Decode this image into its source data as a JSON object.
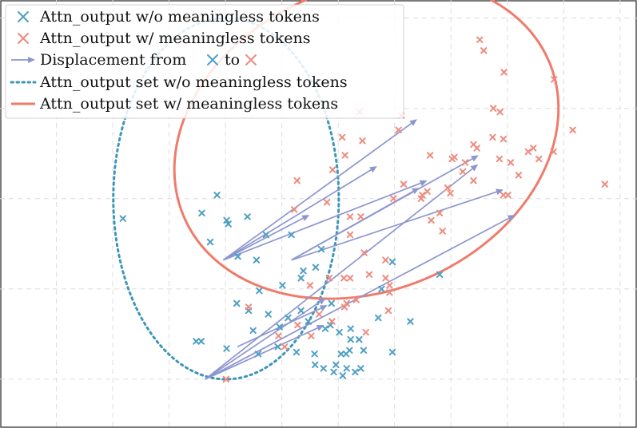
{
  "chart_data": {
    "type": "scatter",
    "title": "",
    "xlabel": "",
    "ylabel": "",
    "grid": true,
    "legend_position": "top-left",
    "colors": {
      "without": "#4e9fc4",
      "with": "#ee8b7e",
      "arrow": "#8c96cf",
      "ellipse_without": "#3d95b8",
      "ellipse_with": "#ef7b6b"
    },
    "legend": [
      {
        "key": "without",
        "label": "Attn_output w/o meaningless tokens"
      },
      {
        "key": "with",
        "label": "Attn_output w/ meaningless tokens"
      },
      {
        "key": "displacement",
        "label_prefix": "Displacement from",
        "label_mid": "to"
      },
      {
        "key": "set_without",
        "label": "Attn_output set w/o meaningless tokens"
      },
      {
        "key": "set_with",
        "label": "Attn_output set w/ meaningless tokens"
      }
    ],
    "series": [
      {
        "key": "without",
        "points": [
          [
            0.18,
            0.89
          ],
          [
            1.58,
            0.92
          ],
          [
            1.85,
            1.02
          ],
          [
            2.05,
            0.86
          ],
          [
            2.39,
            0.9
          ],
          [
            2.22,
            0.68
          ],
          [
            2.55,
            0.66
          ],
          [
            1.73,
            0.76
          ],
          [
            2.72,
            0.8
          ],
          [
            3.17,
            0.8
          ],
          [
            3.7,
            0.72
          ],
          [
            3.6,
            0.62
          ],
          [
            3.38,
            0.6
          ],
          [
            3.01,
            0.52
          ],
          [
            2.6,
            0.49
          ],
          [
            2.2,
            0.42
          ],
          [
            2.41,
            0.38
          ],
          [
            2.76,
            0.36
          ],
          [
            3.11,
            0.34
          ],
          [
            3.47,
            0.32
          ],
          [
            3.86,
            0.3
          ],
          [
            4.02,
            0.26
          ],
          [
            4.37,
            0.22
          ],
          [
            3.88,
            0.42
          ],
          [
            3.58,
            0.14
          ],
          [
            3.34,
            0.38
          ],
          [
            3.59,
            0.08
          ],
          [
            3.96,
            0.08
          ],
          [
            4.15,
            0.06
          ],
          [
            4.3,
            0.04
          ],
          [
            3.26,
            0.15
          ],
          [
            2.58,
            0.14
          ],
          [
            2.02,
            0.17
          ],
          [
            1.57,
            0.21
          ],
          [
            1.48,
            0.21
          ],
          [
            2.49,
            0.27
          ],
          [
            2.96,
            0.29
          ],
          [
            3.34,
            0.56
          ],
          [
            4.22,
            0.22
          ],
          [
            4.4,
            0.06
          ],
          [
            3.77,
            0.28
          ],
          [
            4.14,
            0.14
          ],
          [
            4.05,
            0.14
          ],
          [
            4.45,
            0.16
          ],
          [
            4.96,
            0.15
          ],
          [
            5.28,
            0.32
          ],
          [
            5.8,
            0.58
          ],
          [
            4.77,
            0.5
          ],
          [
            4.96,
            0.65
          ],
          [
            4.22,
            0.28
          ],
          [
            4.2,
            0.16
          ],
          [
            3.92,
            0.04
          ],
          [
            3.74,
            0.06
          ],
          [
            4.08,
            0.02
          ],
          [
            4.71,
            0.34
          ],
          [
            2.93,
            0.18
          ],
          [
            2.02,
            0.88
          ]
        ]
      },
      {
        "key": "with",
        "points": [
          [
            8.16,
            1.38
          ],
          [
            8.73,
            1.08
          ],
          [
            7.83,
            1.66
          ],
          [
            7.56,
            1.22
          ],
          [
            7.46,
            1.28
          ],
          [
            6.94,
            1.7
          ],
          [
            6.58,
            1.82
          ],
          [
            6.51,
            1.88
          ],
          [
            6.75,
            1.5
          ],
          [
            6.87,
            1.48
          ],
          [
            6.4,
            1.3
          ],
          [
            6.02,
            1.22
          ],
          [
            5.63,
            1.24
          ],
          [
            5.12,
            1.46
          ],
          [
            5.07,
            1.38
          ],
          [
            4.38,
            1.48
          ],
          [
            4.43,
            1.32
          ],
          [
            4.12,
            1.24
          ],
          [
            4.07,
            1.34
          ],
          [
            3.9,
            1.16
          ],
          [
            3.27,
            1.1
          ],
          [
            6.93,
            1.33
          ],
          [
            7.06,
            1.2
          ],
          [
            7.2,
            1.13
          ],
          [
            7.37,
            1.26
          ],
          [
            7.82,
            1.26
          ],
          [
            6.25,
            1.2
          ],
          [
            6.4,
            1.1
          ],
          [
            6.74,
            1.34
          ],
          [
            7.01,
            1.02
          ],
          [
            6.86,
            1.22
          ],
          [
            6.46,
            1.28
          ],
          [
            5.94,
            1.06
          ],
          [
            5.58,
            1.04
          ],
          [
            5.8,
            0.92
          ],
          [
            5.49,
            1.02
          ],
          [
            5.16,
            1.08
          ],
          [
            4.98,
            1.0
          ],
          [
            4.4,
            0.9
          ],
          [
            4.21,
            0.9
          ],
          [
            4.21,
            0.8
          ],
          [
            4.46,
            0.7
          ],
          [
            4.55,
            0.58
          ],
          [
            4.84,
            0.66
          ],
          [
            4.91,
            0.48
          ],
          [
            4.91,
            0.52
          ],
          [
            3.8,
            0.98
          ],
          [
            3.22,
            0.94
          ],
          [
            4.32,
            0.44
          ],
          [
            4.11,
            0.4
          ],
          [
            4.49,
            0.26
          ],
          [
            3.52,
            0.24
          ],
          [
            3.66,
            0.36
          ],
          [
            2.41,
            0.4
          ],
          [
            2.94,
            0.24
          ],
          [
            3.28,
            0.3
          ],
          [
            3.89,
            0.32
          ],
          [
            4.15,
            0.42
          ],
          [
            4.89,
            0.38
          ],
          [
            3.5,
            0.52
          ],
          [
            3.84,
            0.56
          ],
          [
            2.01,
            0.0
          ],
          [
            3.05,
            0.18
          ],
          [
            4.21,
            0.56
          ],
          [
            6.06,
            1.23
          ],
          [
            6.21,
            1.15
          ],
          [
            5.99,
            1.03
          ],
          [
            5.65,
            0.88
          ],
          [
            5.85,
            0.82
          ],
          [
            5.47,
            1.0
          ],
          [
            4.84,
            0.56
          ],
          [
            4.1,
            0.56
          ],
          [
            6.93,
            1.02
          ]
        ]
      }
    ],
    "displacements": [
      [
        [
          1.96,
          0.66
        ],
        [
          4.69,
          1.18
        ]
      ],
      [
        [
          1.96,
          0.66
        ],
        [
          5.4,
          1.44
        ]
      ],
      [
        [
          1.96,
          0.66
        ],
        [
          5.58,
          1.1
        ]
      ],
      [
        [
          1.96,
          0.66
        ],
        [
          3.49,
          0.91
        ]
      ],
      [
        [
          3.17,
          0.66
        ],
        [
          6.49,
          1.24
        ]
      ],
      [
        [
          3.17,
          0.66
        ],
        [
          6.93,
          1.05
        ]
      ],
      [
        [
          3.17,
          0.66
        ],
        [
          5.44,
          1.06
        ]
      ],
      [
        [
          1.64,
          0.0
        ],
        [
          3.78,
          0.45
        ]
      ],
      [
        [
          1.64,
          0.0
        ],
        [
          3.75,
          0.3
        ]
      ],
      [
        [
          1.64,
          0.0
        ],
        [
          7.14,
          0.91
        ]
      ],
      [
        [
          2.21,
          0.18
        ],
        [
          3.81,
          0.41
        ]
      ],
      [
        [
          1.64,
          0.0
        ],
        [
          6.48,
          1.19
        ]
      ]
    ],
    "sets": [
      {
        "key": "set_without",
        "cx": 2.01,
        "cy": 1.0,
        "rx": 2.0,
        "ry": 1.0,
        "rotate": 0
      },
      {
        "key": "set_with",
        "cx": 4.5,
        "cy": 1.33,
        "rx": 3.52,
        "ry": 0.84,
        "rotate": 23
      }
    ],
    "xlim": [
      -2.0,
      9.3
    ],
    "ylim": [
      -0.27,
      2.1
    ]
  }
}
